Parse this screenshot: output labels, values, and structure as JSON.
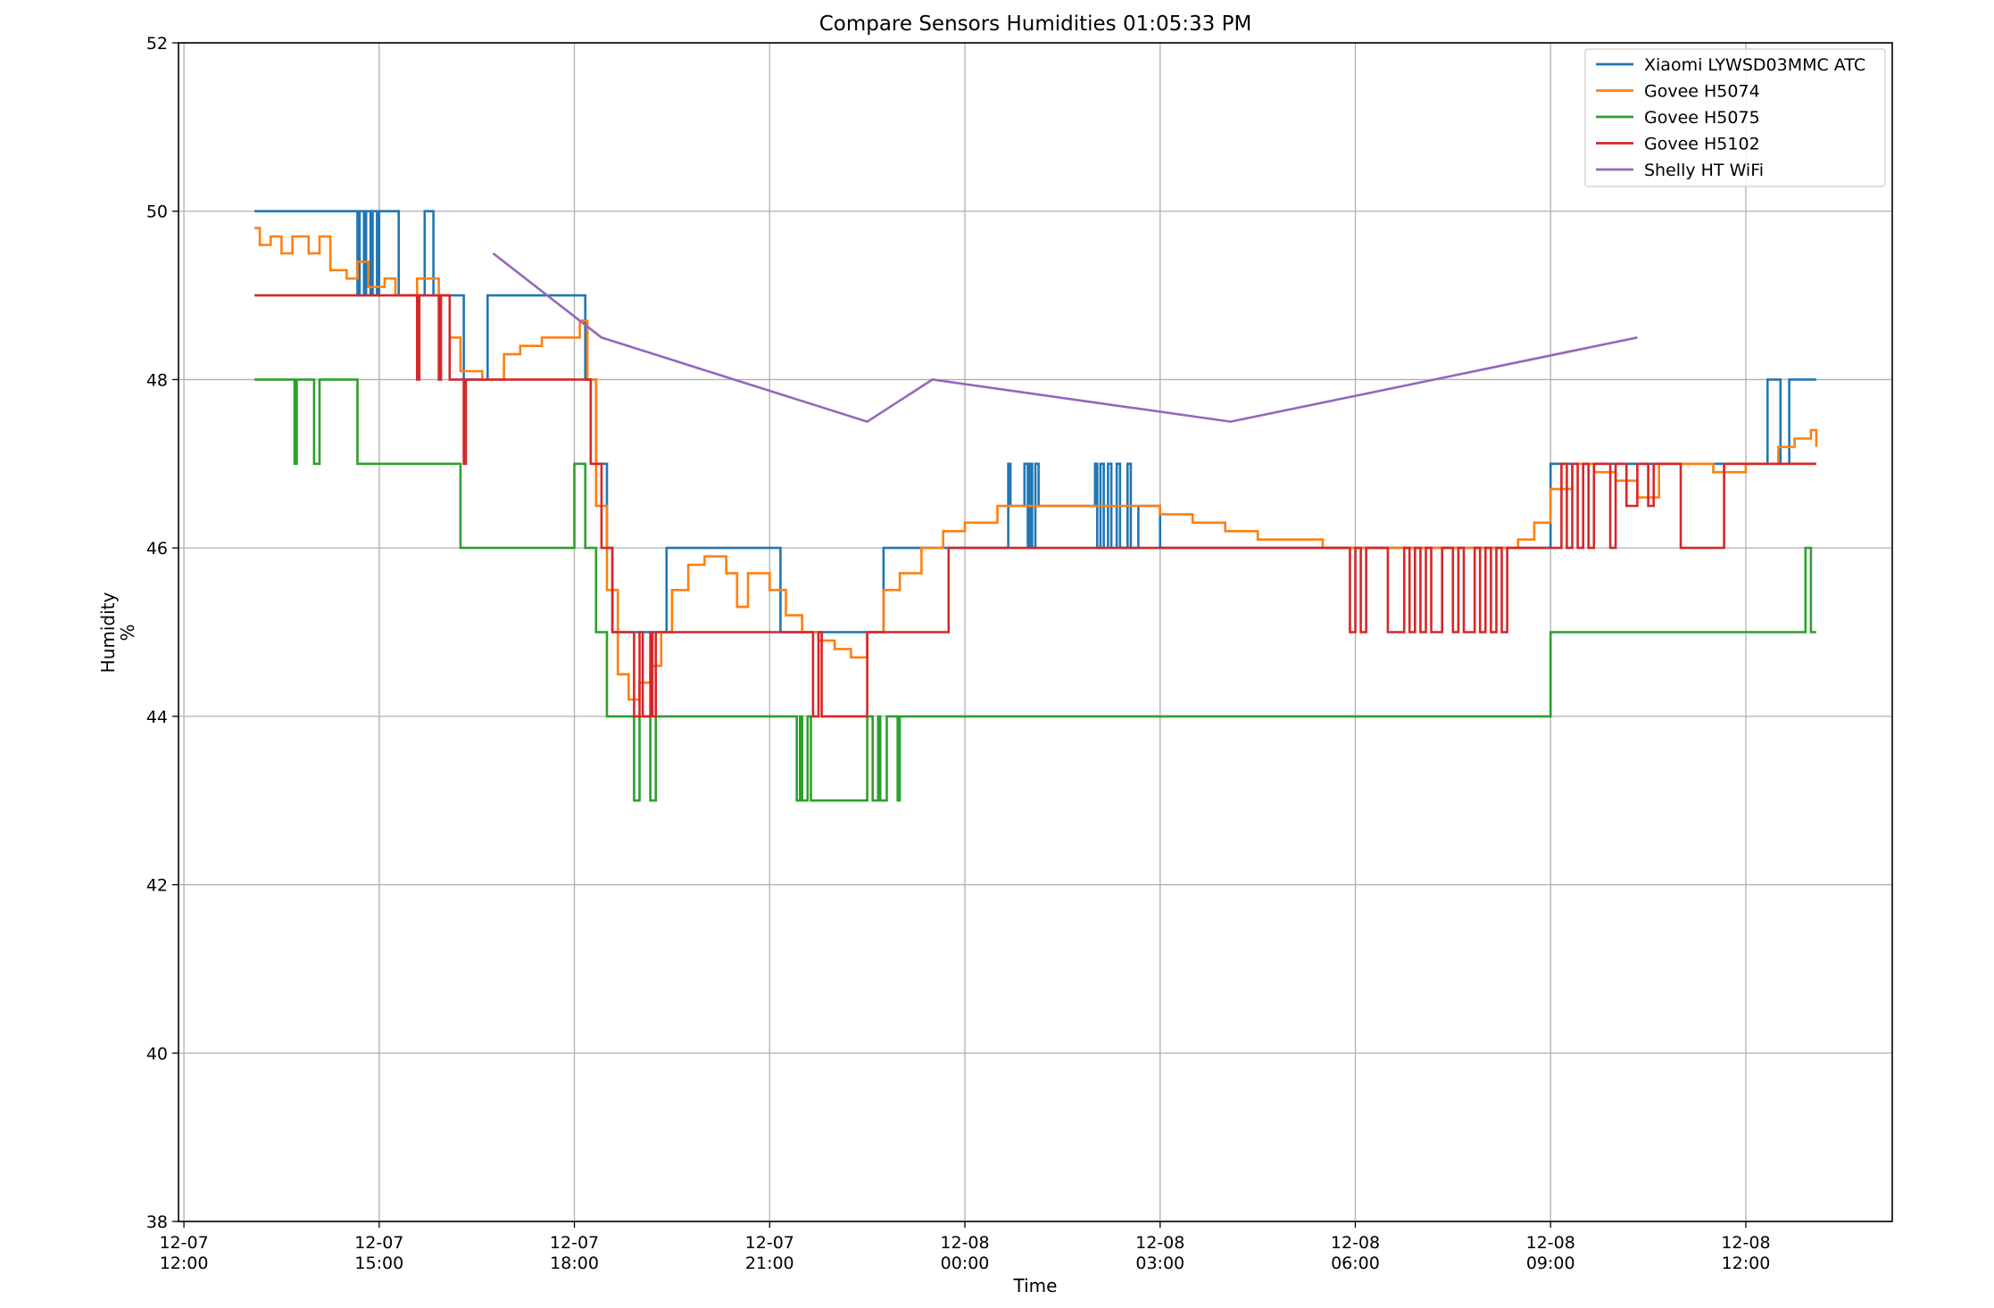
{
  "chart_data": {
    "type": "line",
    "title": "Compare Sensors Humidities 01:05:33 PM",
    "xlabel": "Time",
    "ylabel_lines": [
      "Humidity",
      "%"
    ],
    "x_domain": [
      "2023-12-07T11:55",
      "2023-12-08T14:15"
    ],
    "ylim": [
      38,
      52
    ],
    "y_ticks": [
      38,
      40,
      42,
      44,
      46,
      48,
      50,
      52
    ],
    "x_ticks": [
      {
        "t": "2023-12-07T12:00",
        "line1": "12-07",
        "line2": "12:00"
      },
      {
        "t": "2023-12-07T15:00",
        "line1": "12-07",
        "line2": "15:00"
      },
      {
        "t": "2023-12-07T18:00",
        "line1": "12-07",
        "line2": "18:00"
      },
      {
        "t": "2023-12-07T21:00",
        "line1": "12-07",
        "line2": "21:00"
      },
      {
        "t": "2023-12-08T00:00",
        "line1": "12-08",
        "line2": "00:00"
      },
      {
        "t": "2023-12-08T03:00",
        "line1": "12-08",
        "line2": "03:00"
      },
      {
        "t": "2023-12-08T06:00",
        "line1": "12-08",
        "line2": "06:00"
      },
      {
        "t": "2023-12-08T09:00",
        "line1": "12-08",
        "line2": "09:00"
      },
      {
        "t": "2023-12-08T12:00",
        "line1": "12-08",
        "line2": "12:00"
      }
    ],
    "grid": true,
    "legend_position": "top-right",
    "series": [
      {
        "name": "Xiaomi LYWSD03MMC ATC",
        "color": "#1f77b4",
        "step": true,
        "points": [
          [
            "2023-12-07T13:05",
            50
          ],
          [
            "2023-12-07T14:40",
            49
          ],
          [
            "2023-12-07T14:42",
            50
          ],
          [
            "2023-12-07T14:46",
            49
          ],
          [
            "2023-12-07T14:48",
            50
          ],
          [
            "2023-12-07T14:52",
            49
          ],
          [
            "2023-12-07T14:54",
            50
          ],
          [
            "2023-12-07T14:58",
            49
          ],
          [
            "2023-12-07T15:00",
            50
          ],
          [
            "2023-12-07T15:18",
            49
          ],
          [
            "2023-12-07T15:42",
            50
          ],
          [
            "2023-12-07T15:50",
            49
          ],
          [
            "2023-12-07T16:18",
            48
          ],
          [
            "2023-12-07T16:40",
            49
          ],
          [
            "2023-12-07T18:10",
            48
          ],
          [
            "2023-12-07T18:20",
            47
          ],
          [
            "2023-12-07T18:30",
            46
          ],
          [
            "2023-12-07T18:35",
            45
          ],
          [
            "2023-12-07T19:25",
            46
          ],
          [
            "2023-12-07T21:10",
            45
          ],
          [
            "2023-12-07T22:45",
            46
          ],
          [
            "2023-12-08T00:40",
            47
          ],
          [
            "2023-12-08T00:42",
            46.5
          ],
          [
            "2023-12-08T00:55",
            47
          ],
          [
            "2023-12-08T00:58",
            46
          ],
          [
            "2023-12-08T01:00",
            47
          ],
          [
            "2023-12-08T01:02",
            46
          ],
          [
            "2023-12-08T01:05",
            47
          ],
          [
            "2023-12-08T01:08",
            46.5
          ],
          [
            "2023-12-08T01:15",
            46.5
          ],
          [
            "2023-12-08T02:00",
            47
          ],
          [
            "2023-12-08T02:02",
            46
          ],
          [
            "2023-12-08T02:05",
            47
          ],
          [
            "2023-12-08T02:08",
            46
          ],
          [
            "2023-12-08T02:12",
            47
          ],
          [
            "2023-12-08T02:15",
            46
          ],
          [
            "2023-12-08T02:20",
            47
          ],
          [
            "2023-12-08T02:23",
            46
          ],
          [
            "2023-12-08T02:30",
            47
          ],
          [
            "2023-12-08T02:33",
            46
          ],
          [
            "2023-12-08T02:40",
            46.5
          ],
          [
            "2023-12-08T03:00",
            46
          ],
          [
            "2023-12-08T09:00",
            47
          ],
          [
            "2023-12-08T12:20",
            48
          ],
          [
            "2023-12-08T12:32",
            47
          ],
          [
            "2023-12-08T12:40",
            48
          ],
          [
            "2023-12-08T13:05",
            48
          ]
        ]
      },
      {
        "name": "Govee H5074",
        "color": "#ff7f0e",
        "step": true,
        "points": [
          [
            "2023-12-07T13:05",
            49.8
          ],
          [
            "2023-12-07T13:10",
            49.6
          ],
          [
            "2023-12-07T13:20",
            49.7
          ],
          [
            "2023-12-07T13:30",
            49.5
          ],
          [
            "2023-12-07T13:40",
            49.7
          ],
          [
            "2023-12-07T13:55",
            49.5
          ],
          [
            "2023-12-07T14:05",
            49.7
          ],
          [
            "2023-12-07T14:15",
            49.3
          ],
          [
            "2023-12-07T14:30",
            49.2
          ],
          [
            "2023-12-07T14:40",
            49.4
          ],
          [
            "2023-12-07T14:50",
            49.1
          ],
          [
            "2023-12-07T15:05",
            49.2
          ],
          [
            "2023-12-07T15:15",
            49.0
          ],
          [
            "2023-12-07T15:35",
            49.2
          ],
          [
            "2023-12-07T15:55",
            49.0
          ],
          [
            "2023-12-07T16:05",
            48.5
          ],
          [
            "2023-12-07T16:15",
            48.1
          ],
          [
            "2023-12-07T16:35",
            48.0
          ],
          [
            "2023-12-07T16:55",
            48.3
          ],
          [
            "2023-12-07T17:10",
            48.4
          ],
          [
            "2023-12-07T17:30",
            48.5
          ],
          [
            "2023-12-07T17:50",
            48.5
          ],
          [
            "2023-12-07T18:05",
            48.7
          ],
          [
            "2023-12-07T18:12",
            48.0
          ],
          [
            "2023-12-07T18:20",
            46.5
          ],
          [
            "2023-12-07T18:30",
            45.5
          ],
          [
            "2023-12-07T18:40",
            44.5
          ],
          [
            "2023-12-07T18:50",
            44.2
          ],
          [
            "2023-12-07T19:00",
            44.4
          ],
          [
            "2023-12-07T19:10",
            44.6
          ],
          [
            "2023-12-07T19:20",
            45.0
          ],
          [
            "2023-12-07T19:30",
            45.5
          ],
          [
            "2023-12-07T19:45",
            45.8
          ],
          [
            "2023-12-07T20:00",
            45.9
          ],
          [
            "2023-12-07T20:20",
            45.7
          ],
          [
            "2023-12-07T20:30",
            45.3
          ],
          [
            "2023-12-07T20:40",
            45.7
          ],
          [
            "2023-12-07T21:00",
            45.5
          ],
          [
            "2023-12-07T21:15",
            45.2
          ],
          [
            "2023-12-07T21:30",
            45.0
          ],
          [
            "2023-12-07T21:45",
            44.9
          ],
          [
            "2023-12-07T22:00",
            44.8
          ],
          [
            "2023-12-07T22:15",
            44.7
          ],
          [
            "2023-12-07T22:30",
            45.0
          ],
          [
            "2023-12-07T22:45",
            45.5
          ],
          [
            "2023-12-07T23:00",
            45.7
          ],
          [
            "2023-12-07T23:20",
            46.0
          ],
          [
            "2023-12-07T23:40",
            46.2
          ],
          [
            "2023-12-08T00:00",
            46.3
          ],
          [
            "2023-12-08T00:30",
            46.5
          ],
          [
            "2023-12-08T01:00",
            46.5
          ],
          [
            "2023-12-08T01:30",
            46.5
          ],
          [
            "2023-12-08T02:00",
            46.5
          ],
          [
            "2023-12-08T02:30",
            46.5
          ],
          [
            "2023-12-08T03:00",
            46.4
          ],
          [
            "2023-12-08T03:30",
            46.3
          ],
          [
            "2023-12-08T04:00",
            46.2
          ],
          [
            "2023-12-08T04:30",
            46.1
          ],
          [
            "2023-12-08T05:00",
            46.1
          ],
          [
            "2023-12-08T05:30",
            46.0
          ],
          [
            "2023-12-08T06:00",
            46.0
          ],
          [
            "2023-12-08T07:00",
            46.0
          ],
          [
            "2023-12-08T08:00",
            46.0
          ],
          [
            "2023-12-08T08:30",
            46.1
          ],
          [
            "2023-12-08T08:45",
            46.3
          ],
          [
            "2023-12-08T09:00",
            46.7
          ],
          [
            "2023-12-08T09:20",
            47.0
          ],
          [
            "2023-12-08T09:40",
            46.9
          ],
          [
            "2023-12-08T10:00",
            46.8
          ],
          [
            "2023-12-08T10:20",
            46.6
          ],
          [
            "2023-12-08T10:40",
            47.0
          ],
          [
            "2023-12-08T11:00",
            47.0
          ],
          [
            "2023-12-08T11:30",
            46.9
          ],
          [
            "2023-12-08T12:00",
            47.0
          ],
          [
            "2023-12-08T12:30",
            47.2
          ],
          [
            "2023-12-08T12:45",
            47.3
          ],
          [
            "2023-12-08T13:00",
            47.4
          ],
          [
            "2023-12-08T13:05",
            47.2
          ]
        ]
      },
      {
        "name": "Govee H5075",
        "color": "#2ca02c",
        "step": true,
        "points": [
          [
            "2023-12-07T13:05",
            48
          ],
          [
            "2023-12-07T13:42",
            47
          ],
          [
            "2023-12-07T13:44",
            48
          ],
          [
            "2023-12-07T14:00",
            47
          ],
          [
            "2023-12-07T14:05",
            48
          ],
          [
            "2023-12-07T14:40",
            47
          ],
          [
            "2023-12-07T16:15",
            46
          ],
          [
            "2023-12-07T18:00",
            47
          ],
          [
            "2023-12-07T18:10",
            46
          ],
          [
            "2023-12-07T18:20",
            45
          ],
          [
            "2023-12-07T18:30",
            44
          ],
          [
            "2023-12-07T18:55",
            43
          ],
          [
            "2023-12-07T19:00",
            44
          ],
          [
            "2023-12-07T19:10",
            43
          ],
          [
            "2023-12-07T19:15",
            44
          ],
          [
            "2023-12-07T21:25",
            43
          ],
          [
            "2023-12-07T21:28",
            44
          ],
          [
            "2023-12-07T21:30",
            43
          ],
          [
            "2023-12-07T21:35",
            44
          ],
          [
            "2023-12-07T21:38",
            43
          ],
          [
            "2023-12-07T22:30",
            44
          ],
          [
            "2023-12-07T22:35",
            43
          ],
          [
            "2023-12-07T22:40",
            44
          ],
          [
            "2023-12-07T22:42",
            43
          ],
          [
            "2023-12-07T22:48",
            44
          ],
          [
            "2023-12-07T22:58",
            43
          ],
          [
            "2023-12-07T23:00",
            44
          ],
          [
            "2023-12-08T09:00",
            45
          ],
          [
            "2023-12-08T12:55",
            46
          ],
          [
            "2023-12-08T13:00",
            45
          ],
          [
            "2023-12-08T13:05",
            45
          ]
        ]
      },
      {
        "name": "Govee H5102",
        "color": "#d62728",
        "step": true,
        "points": [
          [
            "2023-12-07T13:05",
            49
          ],
          [
            "2023-12-07T15:35",
            48
          ],
          [
            "2023-12-07T15:37",
            49
          ],
          [
            "2023-12-07T15:55",
            48
          ],
          [
            "2023-12-07T15:57",
            49
          ],
          [
            "2023-12-07T16:05",
            48
          ],
          [
            "2023-12-07T16:18",
            47
          ],
          [
            "2023-12-07T16:20",
            48
          ],
          [
            "2023-12-07T18:15",
            47
          ],
          [
            "2023-12-07T18:25",
            46
          ],
          [
            "2023-12-07T18:35",
            45
          ],
          [
            "2023-12-07T18:55",
            44
          ],
          [
            "2023-12-07T19:00",
            45
          ],
          [
            "2023-12-07T19:03",
            44
          ],
          [
            "2023-12-07T19:10",
            45
          ],
          [
            "2023-12-07T19:12",
            44
          ],
          [
            "2023-12-07T19:15",
            45
          ],
          [
            "2023-12-07T21:40",
            44
          ],
          [
            "2023-12-07T21:45",
            45
          ],
          [
            "2023-12-07T21:48",
            44
          ],
          [
            "2023-12-07T22:30",
            45
          ],
          [
            "2023-12-07T23:45",
            46
          ],
          [
            "2023-12-08T05:55",
            45
          ],
          [
            "2023-12-08T06:00",
            46
          ],
          [
            "2023-12-08T06:05",
            45
          ],
          [
            "2023-12-08T06:10",
            46
          ],
          [
            "2023-12-08T06:30",
            45
          ],
          [
            "2023-12-08T06:45",
            46
          ],
          [
            "2023-12-08T06:50",
            45
          ],
          [
            "2023-12-08T06:55",
            46
          ],
          [
            "2023-12-08T07:00",
            45
          ],
          [
            "2023-12-08T07:05",
            46
          ],
          [
            "2023-12-08T07:10",
            45
          ],
          [
            "2023-12-08T07:20",
            46
          ],
          [
            "2023-12-08T07:30",
            45
          ],
          [
            "2023-12-08T07:35",
            46
          ],
          [
            "2023-12-08T07:40",
            45
          ],
          [
            "2023-12-08T07:50",
            46
          ],
          [
            "2023-12-08T07:55",
            45
          ],
          [
            "2023-12-08T08:00",
            46
          ],
          [
            "2023-12-08T08:05",
            45
          ],
          [
            "2023-12-08T08:10",
            46
          ],
          [
            "2023-12-08T08:15",
            45
          ],
          [
            "2023-12-08T08:20",
            46
          ],
          [
            "2023-12-08T09:10",
            47
          ],
          [
            "2023-12-08T09:15",
            46
          ],
          [
            "2023-12-08T09:20",
            47
          ],
          [
            "2023-12-08T09:25",
            46
          ],
          [
            "2023-12-08T09:30",
            47
          ],
          [
            "2023-12-08T09:35",
            46
          ],
          [
            "2023-12-08T09:40",
            47
          ],
          [
            "2023-12-08T09:55",
            46
          ],
          [
            "2023-12-08T10:00",
            47
          ],
          [
            "2023-12-08T10:10",
            46.5
          ],
          [
            "2023-12-08T10:20",
            47
          ],
          [
            "2023-12-08T10:30",
            46.5
          ],
          [
            "2023-12-08T10:35",
            47
          ],
          [
            "2023-12-08T11:00",
            46
          ],
          [
            "2023-12-08T11:40",
            47
          ],
          [
            "2023-12-08T13:05",
            47
          ]
        ]
      },
      {
        "name": "Shelly HT WiFi",
        "color": "#9467bd",
        "step": false,
        "points": [
          [
            "2023-12-07T16:45",
            49.5
          ],
          [
            "2023-12-07T18:25",
            48.5
          ],
          [
            "2023-12-07T22:30",
            47.5
          ],
          [
            "2023-12-07T23:30",
            48.0
          ],
          [
            "2023-12-08T04:05",
            47.5
          ],
          [
            "2023-12-08T10:20",
            48.5
          ]
        ]
      }
    ]
  }
}
